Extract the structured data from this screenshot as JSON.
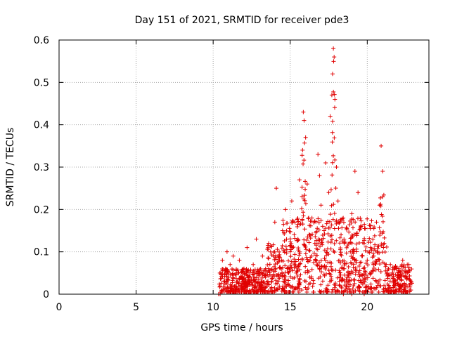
{
  "chart_data": {
    "type": "scatter",
    "title": "Day 151 of 2021, SRMTID for receiver pde3",
    "xlabel": "GPS time / hours",
    "ylabel": "SRMTID / TECUs",
    "xlim": [
      0,
      24
    ],
    "ylim": [
      0,
      0.6
    ],
    "xticks": [
      0,
      5,
      10,
      15,
      20
    ],
    "xtick_labels": [
      "0",
      "5",
      "10",
      "15",
      "20"
    ],
    "yticks": [
      0,
      0.1,
      0.2,
      0.3,
      0.4,
      0.5,
      0.6
    ],
    "ytick_labels": [
      "0",
      "0.1",
      "0.2",
      "0.3",
      "0.4",
      "0.5",
      "0.6"
    ],
    "grid": true,
    "marker": "+",
    "color": "#e00000",
    "series": [
      {
        "name": "SRMTID",
        "points": [
          [
            10.35,
            0.0
          ],
          [
            10.45,
            0.0
          ],
          [
            18.45,
            0.0
          ],
          [
            19.0,
            0.0
          ],
          [
            19.8,
            0.0
          ],
          [
            10.5,
            0.05
          ],
          [
            10.6,
            0.08
          ],
          [
            10.7,
            0.03
          ],
          [
            10.8,
            0.06
          ],
          [
            10.9,
            0.1
          ],
          [
            11.0,
            0.04
          ],
          [
            11.1,
            0.07
          ],
          [
            11.2,
            0.02
          ],
          [
            11.3,
            0.09
          ],
          [
            11.5,
            0.05
          ],
          [
            11.7,
            0.08
          ],
          [
            11.9,
            0.03
          ],
          [
            12.0,
            0.06
          ],
          [
            12.2,
            0.11
          ],
          [
            12.4,
            0.04
          ],
          [
            12.6,
            0.07
          ],
          [
            12.8,
            0.13
          ],
          [
            13.0,
            0.05
          ],
          [
            13.2,
            0.09
          ],
          [
            13.4,
            0.06
          ],
          [
            13.6,
            0.12
          ],
          [
            13.8,
            0.03
          ],
          [
            14.0,
            0.17
          ],
          [
            14.1,
            0.25
          ],
          [
            14.3,
            0.08
          ],
          [
            14.5,
            0.15
          ],
          [
            14.7,
            0.2
          ],
          [
            14.9,
            0.05
          ],
          [
            15.0,
            0.1
          ],
          [
            15.1,
            0.22
          ],
          [
            15.3,
            0.07
          ],
          [
            15.5,
            0.13
          ],
          [
            15.6,
            0.27
          ],
          [
            15.8,
            0.34
          ],
          [
            15.85,
            0.43
          ],
          [
            15.9,
            0.41
          ],
          [
            16.0,
            0.37
          ],
          [
            16.1,
            0.26
          ],
          [
            16.2,
            0.18
          ],
          [
            16.4,
            0.09
          ],
          [
            16.6,
            0.12
          ],
          [
            16.8,
            0.33
          ],
          [
            16.9,
            0.28
          ],
          [
            17.0,
            0.21
          ],
          [
            17.2,
            0.15
          ],
          [
            17.3,
            0.31
          ],
          [
            17.5,
            0.24
          ],
          [
            17.6,
            0.42
          ],
          [
            17.7,
            0.47
          ],
          [
            17.75,
            0.52
          ],
          [
            17.8,
            0.58
          ],
          [
            17.85,
            0.56
          ],
          [
            17.9,
            0.46
          ],
          [
            18.0,
            0.3
          ],
          [
            18.1,
            0.22
          ],
          [
            18.3,
            0.14
          ],
          [
            18.5,
            0.06
          ],
          [
            18.7,
            0.04
          ],
          [
            18.9,
            0.1
          ],
          [
            19.0,
            0.19
          ],
          [
            19.2,
            0.29
          ],
          [
            19.4,
            0.24
          ],
          [
            19.6,
            0.16
          ],
          [
            19.8,
            0.12
          ],
          [
            20.0,
            0.08
          ],
          [
            20.2,
            0.11
          ],
          [
            20.4,
            0.07
          ],
          [
            20.6,
            0.17
          ],
          [
            20.8,
            0.21
          ],
          [
            20.9,
            0.35
          ],
          [
            21.0,
            0.29
          ],
          [
            21.1,
            0.12
          ],
          [
            21.3,
            0.05
          ],
          [
            21.5,
            0.07
          ],
          [
            21.7,
            0.03
          ],
          [
            21.9,
            0.06
          ],
          [
            22.1,
            0.04
          ],
          [
            22.3,
            0.08
          ],
          [
            22.5,
            0.05
          ],
          [
            22.7,
            0.07
          ],
          [
            22.85,
            0.03
          ]
        ]
      }
    ],
    "dense_cloud": {
      "x_range": [
        10.4,
        22.9
      ],
      "peaks": [
        [
          15.85,
          0.43
        ],
        [
          17.8,
          0.58
        ],
        [
          20.95,
          0.35
        ]
      ]
    }
  }
}
